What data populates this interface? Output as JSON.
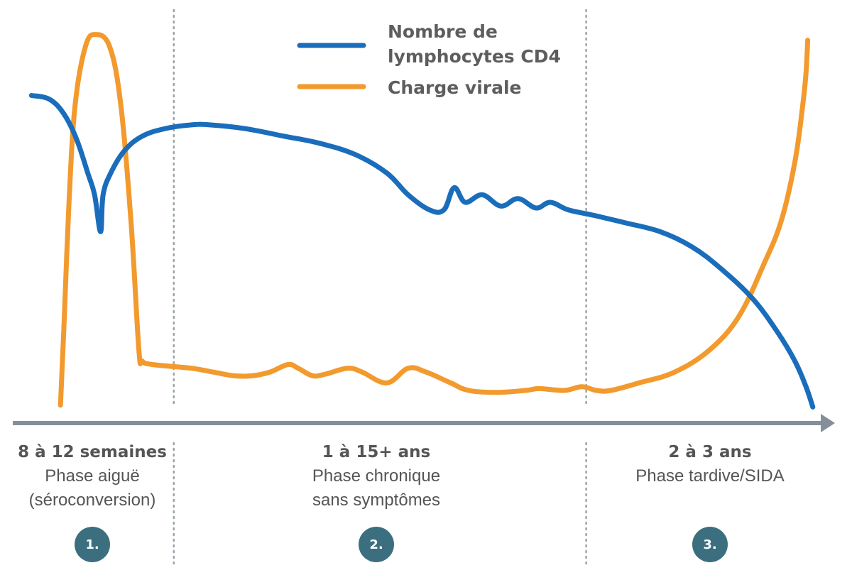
{
  "chart_data": {
    "type": "line",
    "title": "",
    "xlabel": "",
    "ylabel": "",
    "grid": false,
    "legend_position": "top-center",
    "colors": {
      "cd4": "#1a6dbb",
      "viral": "#f29a2e",
      "axis": "#848f99",
      "divider": "#9aa3aa",
      "badge": "#3b6f7f"
    },
    "y_scale": "relative (0 = axis, 100 = top)",
    "x_scale": "schematic timeline position (0 = start, 100 = arrow end)",
    "series": [
      {
        "key": "cd4",
        "name": "Nombre de lymphocytes CD4",
        "points": [
          [
            3.7,
            83.3
          ],
          [
            5.8,
            82.3
          ],
          [
            7.5,
            78.4
          ],
          [
            9,
            71.6
          ],
          [
            10.3,
            62.7
          ],
          [
            11.1,
            56.9
          ],
          [
            11.8,
            47.1
          ],
          [
            12.1,
            56.9
          ],
          [
            13,
            62.7
          ],
          [
            14.6,
            68.6
          ],
          [
            16.7,
            72.5
          ],
          [
            19.4,
            74.5
          ],
          [
            22.5,
            75.5
          ],
          [
            24.6,
            75.5
          ],
          [
            28.7,
            74.5
          ],
          [
            33.3,
            72.5
          ],
          [
            37.5,
            70.6
          ],
          [
            41.7,
            67.6
          ],
          [
            45.4,
            62.7
          ],
          [
            47.9,
            56.9
          ],
          [
            50.4,
            52.9
          ],
          [
            52.1,
            52.9
          ],
          [
            53.3,
            58.8
          ],
          [
            54.6,
            54.9
          ],
          [
            56.6,
            56.9
          ],
          [
            58.8,
            53.9
          ],
          [
            60.8,
            55.9
          ],
          [
            62.9,
            53.4
          ],
          [
            64.6,
            54.9
          ],
          [
            66.7,
            52.9
          ],
          [
            69.6,
            51.5
          ],
          [
            73.3,
            49.5
          ],
          [
            77.5,
            47.1
          ],
          [
            81.2,
            43.1
          ],
          [
            84.6,
            37.3
          ],
          [
            88.3,
            29.4
          ],
          [
            91.2,
            20.6
          ],
          [
            93.3,
            12.7
          ],
          [
            94.6,
            5.9
          ],
          [
            95.4,
            0.5
          ]
        ]
      },
      {
        "key": "viral",
        "name": "Charge virale",
        "points": [
          [
            7.1,
            1
          ],
          [
            7.5,
            21.6
          ],
          [
            8.1,
            54.9
          ],
          [
            8.8,
            80.4
          ],
          [
            10,
            96.1
          ],
          [
            11.2,
            99.5
          ],
          [
            12.9,
            96.1
          ],
          [
            14.2,
            80.4
          ],
          [
            15.4,
            49
          ],
          [
            16.3,
            15.7
          ],
          [
            16.7,
            12.7
          ],
          [
            17.9,
            11.8
          ],
          [
            22.5,
            10.8
          ],
          [
            25,
            9.8
          ],
          [
            27.5,
            8.8
          ],
          [
            29.6,
            8.8
          ],
          [
            31.7,
            9.8
          ],
          [
            33.8,
            11.8
          ],
          [
            35,
            10.8
          ],
          [
            36.7,
            8.8
          ],
          [
            38.3,
            9.3
          ],
          [
            40.8,
            10.8
          ],
          [
            42.5,
            9.8
          ],
          [
            45.4,
            6.9
          ],
          [
            47.9,
            10.8
          ],
          [
            50,
            9.8
          ],
          [
            52.9,
            6.9
          ],
          [
            55,
            4.9
          ],
          [
            58.3,
            4.4
          ],
          [
            61.7,
            4.9
          ],
          [
            63.3,
            5.4
          ],
          [
            66.2,
            4.9
          ],
          [
            68.3,
            5.9
          ],
          [
            70,
            4.9
          ],
          [
            71.7,
            4.9
          ],
          [
            75,
            6.9
          ],
          [
            79.2,
            9.8
          ],
          [
            83.3,
            15.7
          ],
          [
            86.7,
            24.5
          ],
          [
            89.6,
            38.2
          ],
          [
            91.7,
            50
          ],
          [
            93.3,
            65.7
          ],
          [
            94.2,
            80.4
          ],
          [
            94.6,
            89.2
          ],
          [
            94.8,
            98
          ]
        ]
      }
    ],
    "phases": [
      {
        "number": "1.",
        "duration": "8 à 12 semaines",
        "name_lines": [
          "Phase aiguë",
          "(séroconversion)"
        ]
      },
      {
        "number": "2.",
        "duration": "1 à 15+ ans",
        "name_lines": [
          "Phase chronique",
          "sans symptômes"
        ]
      },
      {
        "number": "3.",
        "duration": "2 à 3 ans",
        "name_lines": [
          "Phase tardive/SIDA"
        ]
      }
    ],
    "phase_boundaries": [
      20.4,
      68.8
    ]
  },
  "legend": {
    "cd4_line1": "Nombre de",
    "cd4_line2": "lymphocytes CD4",
    "viral": "Charge virale"
  }
}
